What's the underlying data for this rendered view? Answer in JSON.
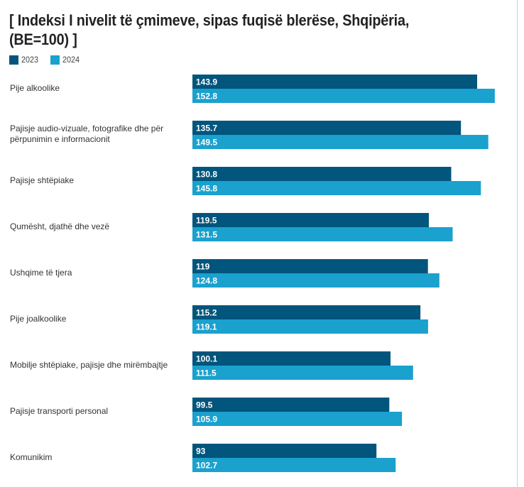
{
  "chart_data": {
    "type": "bar",
    "orientation": "horizontal",
    "title": "[ Indeksi I nivelit të çmimeve, sipas fuqisë blerëse, Shqipëria, (BE=100) ]",
    "xlabel": "",
    "ylabel": "",
    "xlim": [
      0,
      162
    ],
    "grid": false,
    "legend_position": "top-left",
    "data_labels": true,
    "categories": [
      "Pije alkoolike",
      "Pajisje audio-vizuale, fotografike dhe për përpunimin e informacionit",
      "Pajisje shtëpiake",
      "Qumësht, djathë dhe vezë",
      "Ushqime të tjera",
      "Pije joalkoolike",
      "Mobilje shtëpiake, pajisje dhe mirëmbajtje",
      "Pajisje transporti personal",
      "Komunikim"
    ],
    "series": [
      {
        "name": "2023",
        "color": "#02557c",
        "values": [
          143.9,
          135.7,
          130.8,
          119.5,
          119,
          115.2,
          100.1,
          99.5,
          93
        ]
      },
      {
        "name": "2024",
        "color": "#1aa1ce",
        "values": [
          152.8,
          149.5,
          145.8,
          131.5,
          124.8,
          119.1,
          111.5,
          105.9,
          102.7
        ]
      }
    ]
  },
  "label_lines": [
    [
      "Pije alkoolike"
    ],
    [
      "Pajisje audio-vizuale, fotografike dhe për",
      "përpunimin e informacionit"
    ],
    [
      "Pajisje shtëpiake"
    ],
    [
      "Qumësht, djathë dhe vezë"
    ],
    [
      "Ushqime të tjera"
    ],
    [
      "Pije joalkoolike"
    ],
    [
      "Mobilje shtëpiake, pajisje dhe mirëmbajtje"
    ],
    [
      "Pajisje transporti personal"
    ],
    [
      "Komunikim"
    ]
  ],
  "title_lines": [
    "[ Indeksi I nivelit të çmimeve, sipas fuqisë blerëse, Shqipëria,",
    "(BE=100) ]"
  ]
}
